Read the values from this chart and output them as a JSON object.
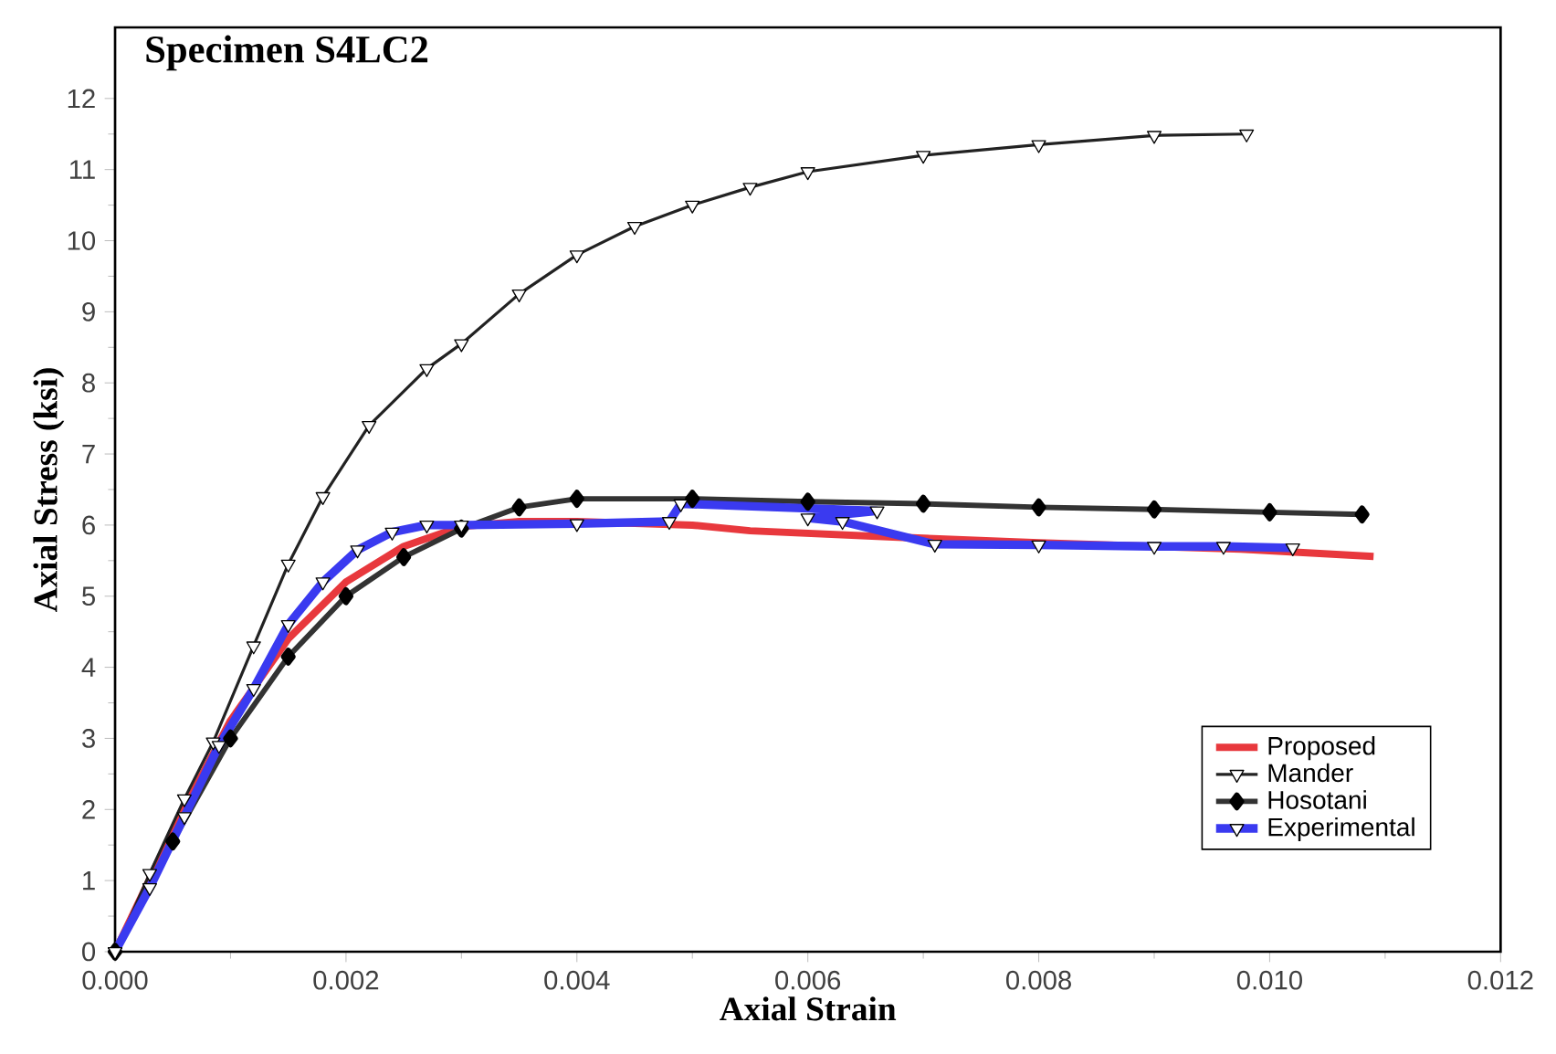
{
  "chart_data": {
    "type": "line",
    "title": "Specimen S4LC2",
    "xlabel": "Axial Strain",
    "ylabel": "Axial Stress (ksi)",
    "xlim": [
      0,
      0.012
    ],
    "ylim": [
      0,
      13
    ],
    "xticks": [
      {
        "value": 0,
        "label": "0.000"
      },
      {
        "value": 0.002,
        "label": "0.002"
      },
      {
        "value": 0.004,
        "label": "0.004"
      },
      {
        "value": 0.006,
        "label": "0.006"
      },
      {
        "value": 0.008,
        "label": "0.008"
      },
      {
        "value": 0.01,
        "label": "0.010"
      },
      {
        "value": 0.012,
        "label": "0.012"
      }
    ],
    "yticks": [
      0,
      1,
      2,
      3,
      4,
      5,
      6,
      7,
      8,
      9,
      10,
      11,
      12
    ],
    "grid": false,
    "legend": "bottom right",
    "series": [
      {
        "name": "Proposed",
        "color": "#e8383d",
        "marker": "none",
        "x": [
          0,
          0.0005,
          0.001,
          0.0015,
          0.002,
          0.0025,
          0.003,
          0.0035,
          0.004,
          0.005,
          0.0055,
          0.0066,
          0.008,
          0.009,
          0.00975,
          0.0109
        ],
        "values": [
          0,
          1.7,
          3.25,
          4.4,
          5.2,
          5.7,
          5.98,
          6.05,
          6.05,
          6.0,
          5.92,
          5.84,
          5.75,
          5.7,
          5.66,
          5.56
        ]
      },
      {
        "name": "Mander",
        "color": "#222222",
        "marker": "triangle",
        "x": [
          0,
          0.0003,
          0.0006,
          0.00085,
          0.0012,
          0.0015,
          0.0018,
          0.0022,
          0.0027,
          0.003,
          0.0035,
          0.004,
          0.0045,
          0.005,
          0.0055,
          0.006,
          0.007,
          0.008,
          0.009,
          0.0098
        ],
        "values": [
          0,
          1.1,
          2.15,
          2.95,
          4.3,
          5.45,
          6.4,
          7.4,
          8.2,
          8.55,
          9.25,
          9.8,
          10.2,
          10.5,
          10.75,
          10.97,
          11.2,
          11.35,
          11.48,
          11.5
        ]
      },
      {
        "name": "Hosotani",
        "color": "#333333",
        "marker": "diamond",
        "x": [
          0,
          0.0005,
          0.001,
          0.0015,
          0.002,
          0.0025,
          0.003,
          0.0035,
          0.004,
          0.005,
          0.006,
          0.007,
          0.008,
          0.009,
          0.01,
          0.0108
        ],
        "values": [
          0,
          1.55,
          3.0,
          4.15,
          5.0,
          5.55,
          5.95,
          6.25,
          6.37,
          6.37,
          6.33,
          6.3,
          6.25,
          6.22,
          6.18,
          6.15
        ]
      },
      {
        "name": "Experimental",
        "color": "#3a3af0",
        "marker": "triangle",
        "x": [
          0,
          0.0003,
          0.0006,
          0.0009,
          0.0012,
          0.0015,
          0.0018,
          0.0021,
          0.0024,
          0.0027,
          0.003,
          0.004,
          0.0048,
          0.0049,
          0.0066,
          0.006,
          0.0063,
          0.0071,
          0.008,
          0.009,
          0.0096,
          0.0102
        ],
        "values": [
          0,
          0.9,
          1.9,
          2.9,
          3.7,
          4.6,
          5.2,
          5.65,
          5.9,
          6.0,
          6.0,
          6.02,
          6.05,
          6.3,
          6.2,
          6.1,
          6.05,
          5.73,
          5.72,
          5.7,
          5.7,
          5.68
        ]
      }
    ]
  }
}
